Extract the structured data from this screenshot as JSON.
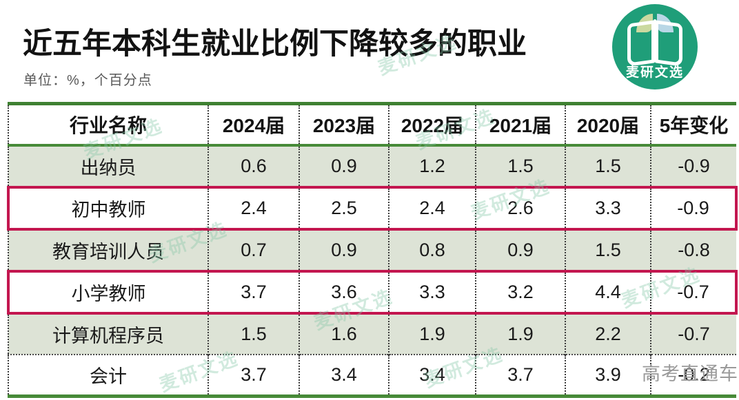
{
  "title": "近五年本科生就业比例下降较多的职业",
  "subtitle": "单位：%，个百分点",
  "logo": {
    "text": "麦研文选",
    "bg_color": "#1f9e79"
  },
  "watermark": {
    "text": "麦研文选",
    "color": "#86c7a8"
  },
  "footer_watermark": "高考直通车",
  "colors": {
    "table_border_green": "#478a38",
    "highlight_border_red": "#c3164f",
    "row_background_sage": "#dde3d6",
    "dotted_separator": "#3d3d3d"
  },
  "chart_data": {
    "type": "table",
    "title": "近五年本科生就业比例下降较多的职业",
    "unit": "%，个百分点",
    "columns": [
      "行业名称",
      "2024届",
      "2023届",
      "2022届",
      "2021届",
      "2020届",
      "5年变化"
    ],
    "rows": [
      {
        "name": "出纳员",
        "values": [
          "0.6",
          "0.9",
          "1.2",
          "1.5",
          "1.5",
          "-0.9"
        ],
        "highlighted": false
      },
      {
        "name": "初中教师",
        "values": [
          "2.4",
          "2.5",
          "2.4",
          "2.6",
          "3.3",
          "-0.9"
        ],
        "highlighted": true
      },
      {
        "name": "教育培训人员",
        "values": [
          "0.7",
          "0.9",
          "0.8",
          "0.9",
          "1.5",
          "-0.8"
        ],
        "highlighted": false
      },
      {
        "name": "小学教师",
        "values": [
          "3.7",
          "3.6",
          "3.3",
          "3.2",
          "4.4",
          "-0.7"
        ],
        "highlighted": true
      },
      {
        "name": "计算机程序员",
        "values": [
          "1.5",
          "1.6",
          "1.9",
          "1.9",
          "2.2",
          "-0.7"
        ],
        "highlighted": false
      },
      {
        "name": "会计",
        "values": [
          "3.7",
          "3.4",
          "3.4",
          "3.7",
          "3.9",
          "-0.2"
        ],
        "highlighted": false
      }
    ]
  }
}
